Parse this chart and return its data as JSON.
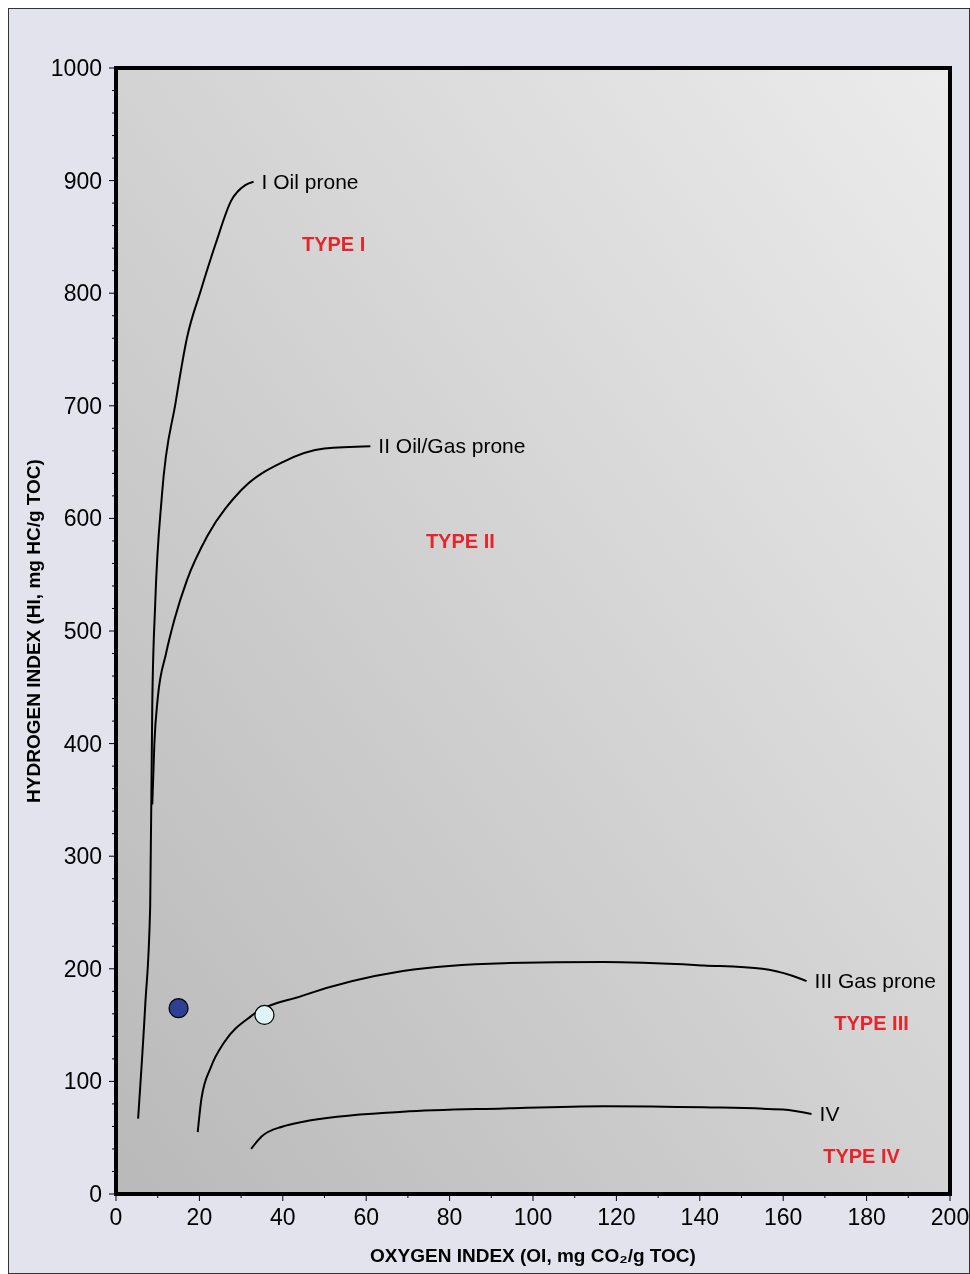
{
  "chart_data": {
    "type": "line",
    "xlabel": "OXYGEN INDEX (OI, mg CO₂/g TOC)",
    "ylabel": "HYDROGEN INDEX (HI, mg HC/g TOC)",
    "xlim": [
      0,
      200
    ],
    "ylim": [
      0,
      1000
    ],
    "xticks": [
      0,
      {
        "value": 10,
        "label": null
      },
      20,
      {
        "value": 30,
        "label": null
      },
      40,
      {
        "value": 50,
        "label": null
      },
      60,
      {
        "value": 70,
        "label": null
      },
      80,
      {
        "value": 90,
        "label": null
      },
      100,
      {
        "value": 110,
        "label": null
      },
      120,
      {
        "value": 130,
        "label": null
      },
      140,
      {
        "value": 150,
        "label": null
      },
      160,
      {
        "value": 170,
        "label": null
      },
      180,
      {
        "value": 190,
        "label": null
      },
      200
    ],
    "yticks": [
      0,
      {
        "value": 20,
        "label": null
      },
      {
        "value": 40,
        "label": null
      },
      {
        "value": 60,
        "label": null
      },
      {
        "value": 80,
        "label": null
      },
      100,
      {
        "value": 120,
        "label": null
      },
      {
        "value": 140,
        "label": null
      },
      {
        "value": 160,
        "label": null
      },
      {
        "value": 180,
        "label": null
      },
      200,
      {
        "value": 220,
        "label": null
      },
      {
        "value": 240,
        "label": null
      },
      {
        "value": 260,
        "label": null
      },
      {
        "value": 280,
        "label": null
      },
      300,
      {
        "value": 320,
        "label": null
      },
      {
        "value": 340,
        "label": null
      },
      {
        "value": 360,
        "label": null
      },
      {
        "value": 380,
        "label": null
      },
      400,
      {
        "value": 420,
        "label": null
      },
      {
        "value": 440,
        "label": null
      },
      {
        "value": 460,
        "label": null
      },
      {
        "value": 480,
        "label": null
      },
      500,
      {
        "value": 520,
        "label": null
      },
      {
        "value": 540,
        "label": null
      },
      {
        "value": 560,
        "label": null
      },
      {
        "value": 580,
        "label": null
      },
      600,
      {
        "value": 620,
        "label": null
      },
      {
        "value": 640,
        "label": null
      },
      {
        "value": 660,
        "label": null
      },
      {
        "value": 680,
        "label": null
      },
      700,
      {
        "value": 720,
        "label": null
      },
      {
        "value": 740,
        "label": null
      },
      {
        "value": 760,
        "label": null
      },
      {
        "value": 780,
        "label": null
      },
      800,
      {
        "value": 820,
        "label": null
      },
      {
        "value": 840,
        "label": null
      },
      {
        "value": 860,
        "label": null
      },
      {
        "value": 880,
        "label": null
      },
      900,
      {
        "value": 920,
        "label": null
      },
      {
        "value": 940,
        "label": null
      },
      {
        "value": 960,
        "label": null
      },
      {
        "value": 980,
        "label": null
      },
      1000
    ],
    "grid": false,
    "marker": "none",
    "line_style": "solid",
    "series": [
      {
        "name": "I Oil prone",
        "color": "#000000",
        "x": [
          5.3,
          7,
          8.2,
          8.7,
          9.4,
          11,
          14.3,
          17,
          20.3,
          24,
          27.6,
          31,
          33
        ],
        "values": [
          67,
          167,
          256,
          435,
          524,
          620,
          703,
          760,
          802,
          845,
          882,
          896,
          899
        ]
      },
      {
        "name": "II Oil/Gas prone",
        "color": "#000000",
        "x": [
          8.7,
          9.2,
          10,
          12,
          14,
          17,
          22,
          30,
          40,
          50,
          61
        ],
        "values": [
          346,
          400,
          440,
          480,
          510,
          545,
          585,
          625,
          650,
          662,
          664
        ]
      },
      {
        "name": "III Gas prone",
        "color": "#000000",
        "x": [
          19.6,
          20.5,
          22.8,
          26,
          32.4,
          44.6,
          68.8,
          93,
          117,
          141,
          155,
          162,
          165.6
        ],
        "values": [
          55,
          85,
          113,
          135,
          158,
          176,
          198,
          205,
          206,
          203,
          200,
          194,
          189
        ]
      },
      {
        "name": "IV",
        "color": "#000000",
        "x": [
          32.4,
          34.9,
          40,
          44.6,
          68.8,
          93,
          117,
          141,
          160,
          166.8
        ],
        "values": [
          40,
          51,
          60,
          64,
          73,
          76,
          78,
          77,
          75,
          71
        ]
      },
      {
        "type": "scatter",
        "marker": "circle",
        "color": "#2e3f94",
        "x": [
          15
        ],
        "values": [
          165
        ]
      },
      {
        "type": "scatter",
        "marker": "circle",
        "color": "#dff3f7",
        "x": [
          35.6
        ],
        "values": [
          159
        ]
      }
    ],
    "annotations": [
      "TYPE I",
      "TYPE II",
      "TYPE III",
      "TYPE IV"
    ]
  }
}
